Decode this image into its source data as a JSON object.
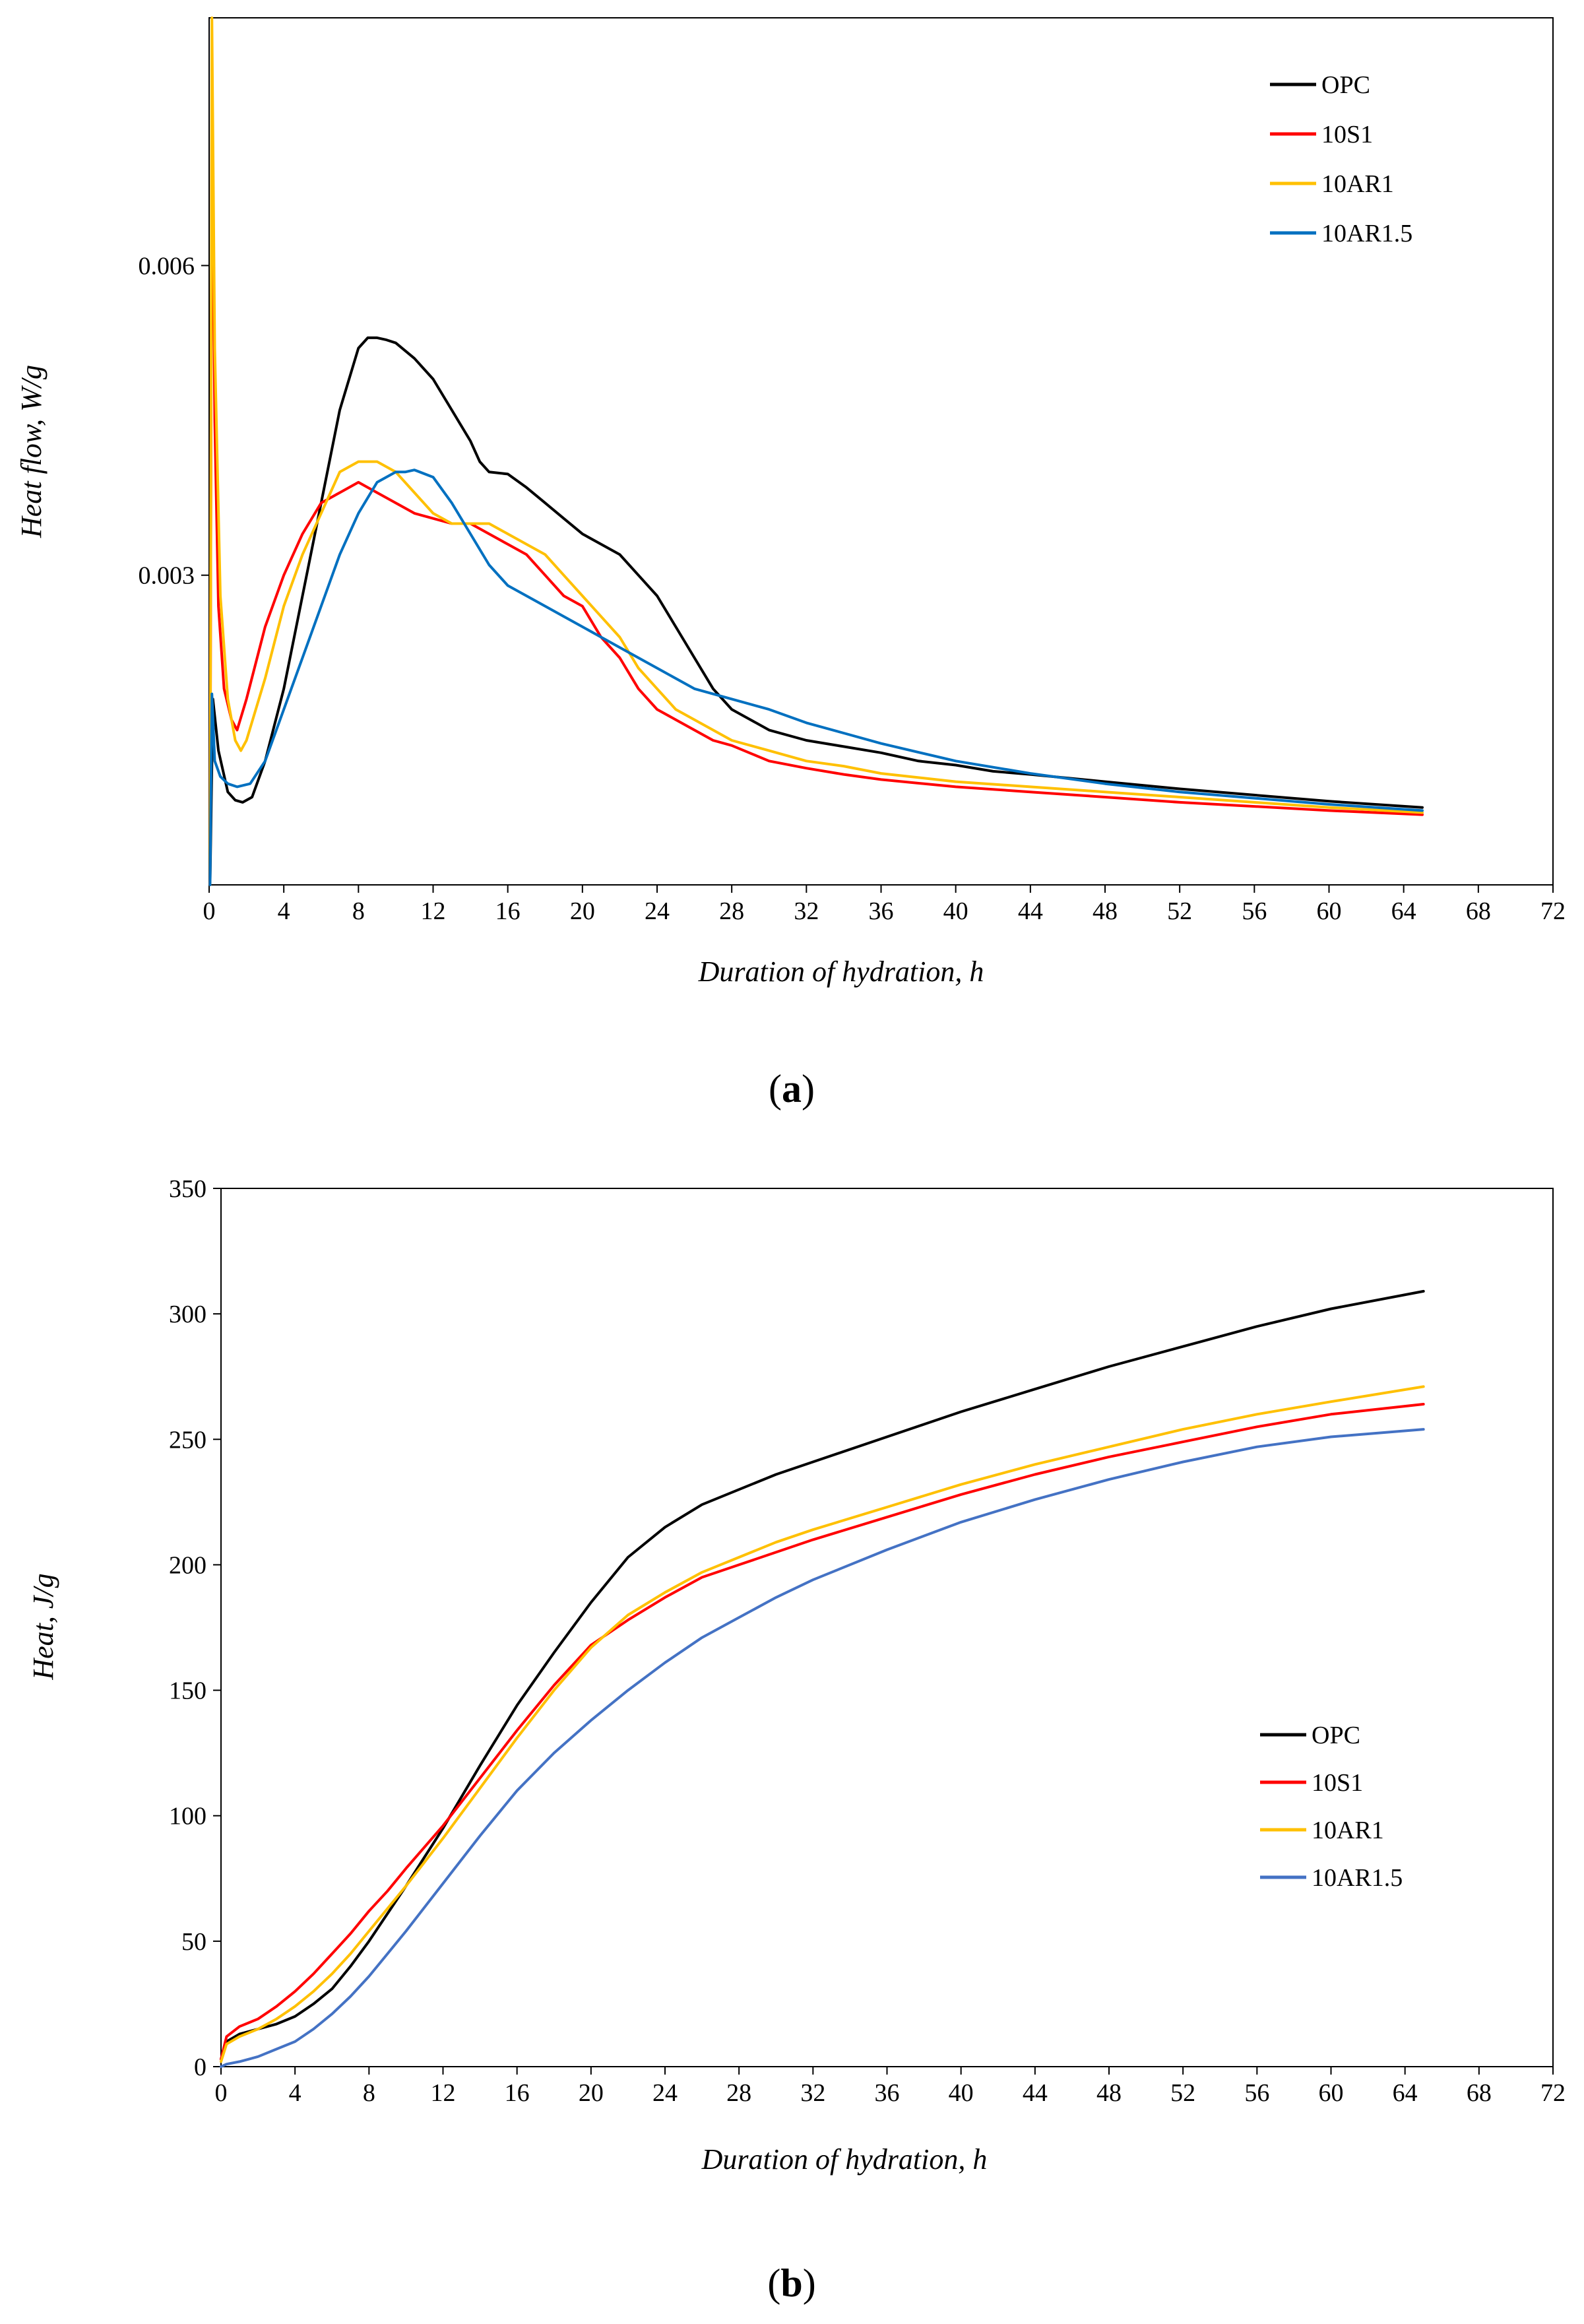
{
  "charts": [
    {
      "id": "a",
      "panel_label_open": "(",
      "panel_label_letter": "a",
      "panel_label_close": ")",
      "chart_data": {
        "type": "line",
        "title": "",
        "xlabel": "Duration of hydration, h",
        "ylabel": "Heat flow, W/g",
        "xlim": [
          0,
          72
        ],
        "ylim": [
          0,
          0.0084
        ],
        "xticks": [
          0,
          4,
          8,
          12,
          16,
          20,
          24,
          28,
          32,
          36,
          40,
          44,
          48,
          52,
          56,
          60,
          64,
          68,
          72
        ],
        "xtick_labels": [
          "0",
          "4",
          "8",
          "12",
          "16",
          "20",
          "24",
          "28",
          "32",
          "36",
          "40",
          "44",
          "48",
          "52",
          "56",
          "60",
          "64",
          "68",
          "72"
        ],
        "yticks": [
          0.003,
          0.006
        ],
        "ytick_labels": [
          "0.003",
          "0.006"
        ],
        "grid": false,
        "legend": "top-right",
        "series": [
          {
            "name": "OPC",
            "color": "#000000",
            "x": [
              0.05,
              0.2,
              0.5,
              1.0,
              1.4,
              1.8,
              2.3,
              3,
              4,
              5,
              6,
              7,
              8,
              8.5,
              9,
              9.5,
              10,
              11,
              12,
              13,
              14,
              14.5,
              15,
              16,
              17,
              18,
              19,
              20,
              21,
              22,
              23,
              24,
              25,
              26,
              27,
              28,
              29,
              30,
              32,
              34,
              36,
              38,
              40,
              42,
              44,
              48,
              52,
              56,
              60,
              65
            ],
            "y": [
              0.0,
              0.0018,
              0.0013,
              0.0009,
              0.00082,
              0.0008,
              0.00085,
              0.0012,
              0.0019,
              0.0028,
              0.0037,
              0.0046,
              0.0052,
              0.0053,
              0.0053,
              0.00528,
              0.00525,
              0.0051,
              0.0049,
              0.0046,
              0.0043,
              0.0041,
              0.004,
              0.00398,
              0.00385,
              0.0037,
              0.00355,
              0.0034,
              0.0033,
              0.0032,
              0.003,
              0.0028,
              0.0025,
              0.0022,
              0.0019,
              0.0017,
              0.0016,
              0.0015,
              0.0014,
              0.00134,
              0.00128,
              0.0012,
              0.00116,
              0.0011,
              0.00107,
              0.001,
              0.00093,
              0.00087,
              0.00081,
              0.00075
            ]
          },
          {
            "name": "10S1",
            "color": "#ff0000",
            "x": [
              0.05,
              0.15,
              0.3,
              0.5,
              0.8,
              1.2,
              1.5,
              2,
              3,
              4,
              5,
              6,
              7,
              8,
              9,
              10,
              11,
              12,
              13,
              14,
              15,
              16,
              17,
              18,
              19,
              20,
              21,
              22,
              23,
              24,
              25,
              26,
              27,
              28,
              30,
              32,
              34,
              36,
              40,
              44,
              48,
              52,
              56,
              60,
              65
            ],
            "y": [
              0.0,
              0.0079,
              0.0045,
              0.0027,
              0.0019,
              0.0016,
              0.0015,
              0.0018,
              0.0025,
              0.003,
              0.0034,
              0.0037,
              0.0038,
              0.0039,
              0.0038,
              0.0037,
              0.0036,
              0.00355,
              0.0035,
              0.0035,
              0.0034,
              0.0033,
              0.0032,
              0.003,
              0.0028,
              0.0027,
              0.0024,
              0.0022,
              0.0019,
              0.0017,
              0.0016,
              0.0015,
              0.0014,
              0.00135,
              0.0012,
              0.00113,
              0.00107,
              0.00102,
              0.00095,
              0.0009,
              0.00085,
              0.0008,
              0.00076,
              0.00072,
              0.00068
            ]
          },
          {
            "name": "10AR1",
            "color": "#ffc000",
            "x": [
              0.05,
              0.15,
              0.3,
              0.6,
              1.0,
              1.4,
              1.7,
              2,
              3,
              4,
              5,
              6,
              7,
              8,
              8.5,
              9,
              10,
              11,
              12,
              13,
              14,
              15,
              16,
              17,
              18,
              19,
              20,
              21,
              22,
              23,
              24,
              25,
              26,
              27,
              28,
              30,
              32,
              34,
              36,
              40,
              44,
              48,
              52,
              56,
              60,
              65
            ],
            "y": [
              0.0,
              0.0084,
              0.0052,
              0.0028,
              0.0018,
              0.0014,
              0.0013,
              0.0014,
              0.002,
              0.0027,
              0.0032,
              0.0036,
              0.004,
              0.0041,
              0.0041,
              0.0041,
              0.004,
              0.0038,
              0.0036,
              0.0035,
              0.0035,
              0.0035,
              0.0034,
              0.0033,
              0.0032,
              0.003,
              0.0028,
              0.0026,
              0.0024,
              0.0021,
              0.0019,
              0.0017,
              0.0016,
              0.0015,
              0.0014,
              0.0013,
              0.0012,
              0.00115,
              0.00108,
              0.001,
              0.00095,
              0.0009,
              0.00085,
              0.0008,
              0.00075,
              0.0007
            ]
          },
          {
            "name": "10AR1.5",
            "color": "#0070c0",
            "x": [
              0.05,
              0.15,
              0.3,
              0.6,
              1.0,
              1.5,
              2.2,
              3,
              4,
              5,
              6,
              7,
              8,
              9,
              10,
              10.5,
              11,
              12,
              13,
              14,
              15,
              16,
              17,
              18,
              19,
              20,
              22,
              24,
              26,
              28,
              30,
              32,
              34,
              36,
              40,
              44,
              48,
              52,
              56,
              60,
              65
            ],
            "y": [
              0.0,
              0.00185,
              0.0012,
              0.00105,
              0.00098,
              0.00095,
              0.00098,
              0.0012,
              0.0017,
              0.0022,
              0.0027,
              0.0032,
              0.0036,
              0.0039,
              0.004,
              0.004,
              0.00402,
              0.00395,
              0.0037,
              0.0034,
              0.0031,
              0.0029,
              0.0028,
              0.0027,
              0.0026,
              0.0025,
              0.0023,
              0.0021,
              0.0019,
              0.0018,
              0.0017,
              0.00157,
              0.00147,
              0.00137,
              0.0012,
              0.00108,
              0.00098,
              0.0009,
              0.00084,
              0.00078,
              0.00072
            ]
          }
        ]
      }
    },
    {
      "id": "b",
      "panel_label_open": "(",
      "panel_label_letter": "b",
      "panel_label_close": ")",
      "chart_data": {
        "type": "line",
        "title": "",
        "xlabel": "Duration of hydration, h",
        "ylabel": "Heat, J/g",
        "xlim": [
          0,
          72
        ],
        "ylim": [
          0,
          350
        ],
        "xticks": [
          0,
          4,
          8,
          12,
          16,
          20,
          24,
          28,
          32,
          36,
          40,
          44,
          48,
          52,
          56,
          60,
          64,
          68,
          72
        ],
        "xtick_labels": [
          "0",
          "4",
          "8",
          "12",
          "16",
          "20",
          "24",
          "28",
          "32",
          "36",
          "40",
          "44",
          "48",
          "52",
          "56",
          "60",
          "64",
          "68",
          "72"
        ],
        "yticks": [
          0,
          50,
          100,
          150,
          200,
          250,
          300,
          350
        ],
        "ytick_labels": [
          "0",
          "50",
          "100",
          "150",
          "200",
          "250",
          "300",
          "350"
        ],
        "grid": false,
        "legend": "bottom-right",
        "series": [
          {
            "name": "OPC",
            "color": "#000000",
            "x": [
              0,
              0.3,
              1,
              2,
              3,
              4,
              5,
              6,
              7,
              8,
              9,
              10,
              12,
              14,
              16,
              18,
              20,
              22,
              24,
              26,
              28,
              30,
              32,
              36,
              40,
              44,
              48,
              52,
              56,
              60,
              65
            ],
            "y": [
              3,
              10,
              13,
              15,
              17,
              20,
              25,
              31,
              40,
              50,
              61,
              72,
              95,
              120,
              144,
              165,
              185,
              203,
              215,
              224,
              230,
              236,
              241,
              251,
              261,
              270,
              279,
              287,
              295,
              302,
              309
            ]
          },
          {
            "name": "10S1",
            "color": "#ff0000",
            "x": [
              0,
              0.3,
              1,
              2,
              3,
              4,
              5,
              6,
              7,
              8,
              9,
              10,
              12,
              14,
              16,
              18,
              20,
              22,
              24,
              26,
              28,
              30,
              32,
              36,
              40,
              44,
              48,
              52,
              56,
              60,
              65
            ],
            "y": [
              3,
              12,
              16,
              19,
              24,
              30,
              37,
              45,
              53,
              62,
              70,
              79,
              96,
              115,
              134,
              152,
              168,
              178,
              187,
              195,
              200,
              205,
              210,
              219,
              228,
              236,
              243,
              249,
              255,
              260,
              264
            ]
          },
          {
            "name": "10AR1",
            "color": "#ffc000",
            "x": [
              0,
              0.3,
              1,
              2,
              3,
              4,
              5,
              6,
              7,
              8,
              9,
              10,
              12,
              14,
              16,
              18,
              20,
              22,
              24,
              26,
              28,
              30,
              32,
              36,
              40,
              44,
              48,
              52,
              56,
              60,
              65
            ],
            "y": [
              2,
              9,
              12,
              15,
              19,
              24,
              30,
              37,
              45,
              54,
              63,
              72,
              91,
              111,
              131,
              150,
              167,
              180,
              189,
              197,
              203,
              209,
              214,
              223,
              232,
              240,
              247,
              254,
              260,
              265,
              271
            ]
          },
          {
            "name": "10AR1.5",
            "color": "#4472c4",
            "x": [
              0,
              0.3,
              1,
              2,
              3,
              4,
              5,
              6,
              7,
              8,
              9,
              10,
              12,
              14,
              16,
              18,
              20,
              22,
              24,
              26,
              28,
              30,
              32,
              36,
              40,
              44,
              48,
              52,
              56,
              60,
              65
            ],
            "y": [
              0,
              1,
              2,
              4,
              7,
              10,
              15,
              21,
              28,
              36,
              45,
              54,
              73,
              92,
              110,
              125,
              138,
              150,
              161,
              171,
              179,
              187,
              194,
              206,
              217,
              226,
              234,
              241,
              247,
              251,
              254
            ]
          }
        ]
      }
    }
  ]
}
